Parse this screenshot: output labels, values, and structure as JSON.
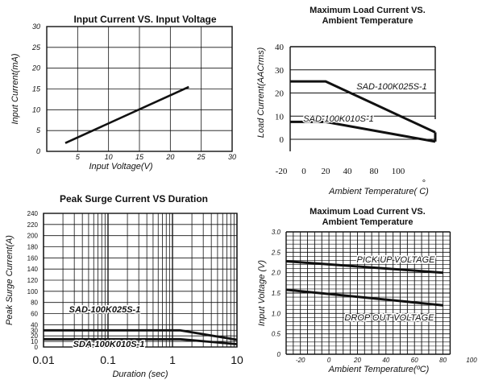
{
  "chart_data": [
    {
      "type": "line",
      "title": "Input Current VS. Input Voltage",
      "xlabel": "Input  Voltage(V)",
      "ylabel": "Input Current(mA)",
      "xlim": [
        0,
        30
      ],
      "ylim": [
        0,
        30
      ],
      "x_ticks": [
        "5",
        "10",
        "15",
        "20",
        "25",
        "30"
      ],
      "y_ticks": [
        "0",
        "5",
        "10",
        "15",
        "20",
        "25",
        "30"
      ],
      "grid": true,
      "series": [
        {
          "x": [
            3,
            23
          ],
          "y": [
            2,
            15.5
          ]
        }
      ]
    },
    {
      "type": "line",
      "title_lines": [
        "Maximum Load Current VS.",
        "Ambient  Temperature"
      ],
      "xlabel": "Ambient Temperature( C)",
      "degree_mark": "°",
      "ylabel": "Load Current(AACrms)",
      "x_ticks": [
        "-20",
        "0",
        "20",
        "40",
        "80",
        "100"
      ],
      "y_ticks": [
        "0",
        "10",
        "20",
        "30",
        "40"
      ],
      "grid": "horizontal",
      "series": [
        {
          "name": "SAD-100K025S-1",
          "x": [
            -20,
            10,
            110
          ],
          "y": [
            25,
            25,
            3
          ]
        },
        {
          "name": "SAD-100K010S-1",
          "x": [
            -20,
            10,
            110
          ],
          "y": [
            7.5,
            7.5,
            -1
          ]
        }
      ]
    },
    {
      "type": "line",
      "title": "Peak Surge Current VS Duration",
      "xlabel": "Duration (sec)",
      "ylabel": "Peak Surge Current(A)",
      "x_scale": "log",
      "xlim": [
        0.01,
        10
      ],
      "ylim": [
        0,
        240
      ],
      "x_ticks": [
        "0.01",
        "0.1",
        "1",
        "10"
      ],
      "y_ticks": [
        "0",
        "10",
        "20",
        "30",
        "40",
        "60",
        "80",
        "100",
        "120",
        "140",
        "160",
        "180",
        "200",
        "220",
        "240"
      ],
      "grid": true,
      "series": [
        {
          "name": "SAD-100K025S-1",
          "x": [
            0.01,
            1.3,
            10
          ],
          "y": [
            30,
            30,
            13
          ]
        },
        {
          "name": "SDA-100K010S-1",
          "x": [
            0.01,
            1.3,
            10
          ],
          "y": [
            14,
            14,
            5
          ]
        }
      ]
    },
    {
      "type": "line",
      "title_lines": [
        "Maximum Load Current VS.",
        "Ambient  Temperature"
      ],
      "xlabel": "Ambient Temperature(ºC)",
      "ylabel": "Input Voltage (V)",
      "xlim": [
        -30,
        100
      ],
      "ylim": [
        0,
        3.0
      ],
      "x_ticks": [
        "-20",
        "0",
        "20",
        "40",
        "60",
        "80",
        "100"
      ],
      "y_ticks": [
        "0",
        "0.5",
        "1.0",
        "1.5",
        "2.0",
        "2.5",
        "3.0"
      ],
      "grid": true,
      "series": [
        {
          "name": "PICK UP VOLTAGE",
          "x": [
            -30,
            80
          ],
          "y": [
            2.28,
            2.0
          ]
        },
        {
          "name": "DROP OUT VOLTAGE",
          "x": [
            -30,
            80
          ],
          "y": [
            1.58,
            1.2
          ]
        }
      ]
    }
  ]
}
